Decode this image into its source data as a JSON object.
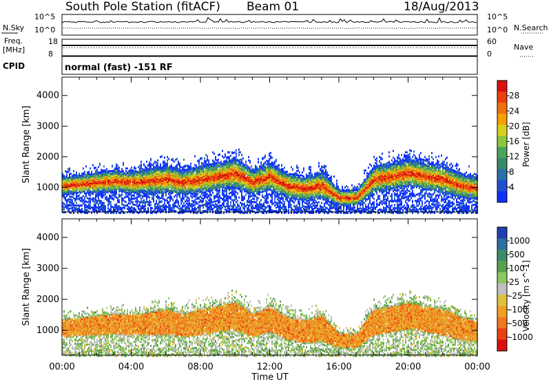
{
  "header": {
    "station": "South Pole Station (fitACF)",
    "beam": "Beam 01",
    "date": "18/Aug/2013"
  },
  "top_panels": {
    "nsky_label": "N.Sky",
    "nsearch_label": "N.Search",
    "noise_ticks": [
      "10^5",
      "10^0"
    ],
    "freq_label": "Freq.",
    "freq_unit": "[MHz]",
    "freq_ticks": [
      "18",
      "8"
    ],
    "nave_label": "Nave",
    "nave_ticks": [
      "60",
      "0"
    ],
    "cpid_label": "CPID",
    "cpid_text": "normal (fast) -151 RF"
  },
  "colors": {
    "power": [
      "#1030ff",
      "#2050d0",
      "#2a6fa8",
      "#3a8a6a",
      "#4aa45a",
      "#8cc63f",
      "#d8d020",
      "#f5a000",
      "#f07010",
      "#e84010",
      "#d81010"
    ],
    "velocity": [
      "#2040b0",
      "#2a6fa0",
      "#3f8a6a",
      "#5aa050",
      "#8dc860",
      "#c0c0c0",
      "#e0c040",
      "#f0a020",
      "#f07820",
      "#e84010",
      "#d81010"
    ]
  },
  "chart_data": [
    {
      "type": "heatmap",
      "name": "power",
      "ylabel": "Slant Range [km]",
      "ylim": [
        200,
        4600
      ],
      "yticks": [
        "1000",
        "2000",
        "3000",
        "4000"
      ],
      "xlabel": "Time UT",
      "xlim_hours": [
        0,
        24
      ],
      "xticks": [
        "00:00",
        "04:00",
        "08:00",
        "12:00",
        "16:00",
        "20:00",
        "00:00"
      ],
      "colorbar_label": "Power [dB]",
      "colorbar_ticks": [
        "4",
        "8",
        "12",
        "16",
        "20",
        "24",
        "28"
      ],
      "scatter_band": {
        "description": "main echo band slant range (km) vs hour",
        "hours": [
          0,
          1,
          2,
          3,
          4,
          5,
          6,
          7,
          8,
          9,
          10,
          11,
          12,
          13,
          14,
          15,
          16,
          17,
          18,
          19,
          20,
          21,
          22,
          23,
          24
        ],
        "center_km": [
          1100,
          1150,
          1200,
          1250,
          1200,
          1250,
          1300,
          1200,
          1300,
          1400,
          1500,
          1200,
          1400,
          1100,
          1000,
          1100,
          700,
          700,
          1300,
          1400,
          1500,
          1400,
          1300,
          1100,
          1000
        ],
        "width_km": [
          600,
          600,
          700,
          700,
          700,
          800,
          900,
          800,
          900,
          900,
          1000,
          800,
          900,
          800,
          800,
          900,
          500,
          500,
          900,
          900,
          900,
          900,
          900,
          800,
          700
        ]
      }
    },
    {
      "type": "heatmap",
      "name": "velocity",
      "ylabel": "Slant Range [km]",
      "ylim": [
        200,
        4600
      ],
      "yticks": [
        "1000",
        "2000",
        "3000",
        "4000"
      ],
      "xlabel": "Time UT",
      "xlim_hours": [
        0,
        24
      ],
      "xticks": [
        "00:00",
        "04:00",
        "08:00",
        "12:00",
        "16:00",
        "20:00",
        "00:00"
      ],
      "colorbar_label": "Velocity [m s^-1]",
      "colorbar_ticks": [
        "1000",
        "500",
        "100",
        "25",
        "-25",
        "-100",
        "-500",
        "-1000"
      ]
    }
  ]
}
